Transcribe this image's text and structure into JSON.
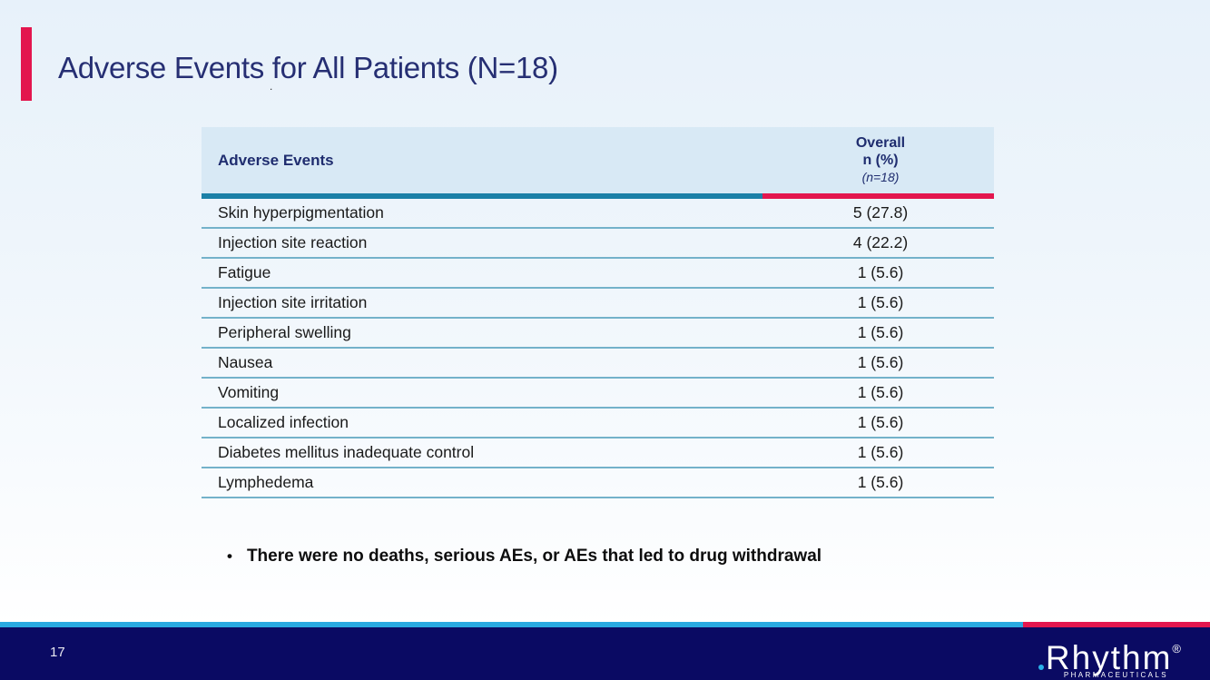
{
  "slide": {
    "title": "Adverse Events for All Patients (N=18)",
    "stray_dot": ".",
    "page_number": "17"
  },
  "table": {
    "header": {
      "col_events": "Adverse Events",
      "col_overall_line1": "Overall",
      "col_overall_line2": "n (%)",
      "col_overall_line3": "(n=18)"
    },
    "rows": [
      {
        "label": "Skin hyperpigmentation",
        "value": "5 (27.8)"
      },
      {
        "label": "Injection site reaction",
        "value": "4 (22.2)"
      },
      {
        "label": "Fatigue",
        "value": "1 (5.6)"
      },
      {
        "label": "Injection site irritation",
        "value": "1 (5.6)"
      },
      {
        "label": "Peripheral swelling",
        "value": "1 (5.6)"
      },
      {
        "label": "Nausea",
        "value": "1 (5.6)"
      },
      {
        "label": "Vomiting",
        "value": "1 (5.6)"
      },
      {
        "label": "Localized infection",
        "value": "1 (5.6)"
      },
      {
        "label": "Diabetes mellitus inadequate control",
        "value": "1 (5.6)"
      },
      {
        "label": "Lymphedema",
        "value": "1 (5.6)"
      }
    ]
  },
  "bullet": {
    "glyph": "•",
    "text": "There were no deaths, serious AEs, or AEs that led to drug withdrawal"
  },
  "footer": {
    "logo_text": "Rhythm",
    "logo_registered": "®",
    "logo_subtext": "PHARMACEUTICALS"
  },
  "colors": {
    "accent_pink": "#e3164e",
    "accent_teal": "#1b80a7",
    "row_separator": "#74b2ca",
    "header_bg": "#d8e9f5",
    "title_navy": "#262f73",
    "footer_navy": "#0a0a63",
    "footer_cyan": "#29a9e1",
    "logo_dot_cyan": "#2ab0e8",
    "background_top": "#e7f1fa",
    "background_bottom": "#ffffff"
  }
}
